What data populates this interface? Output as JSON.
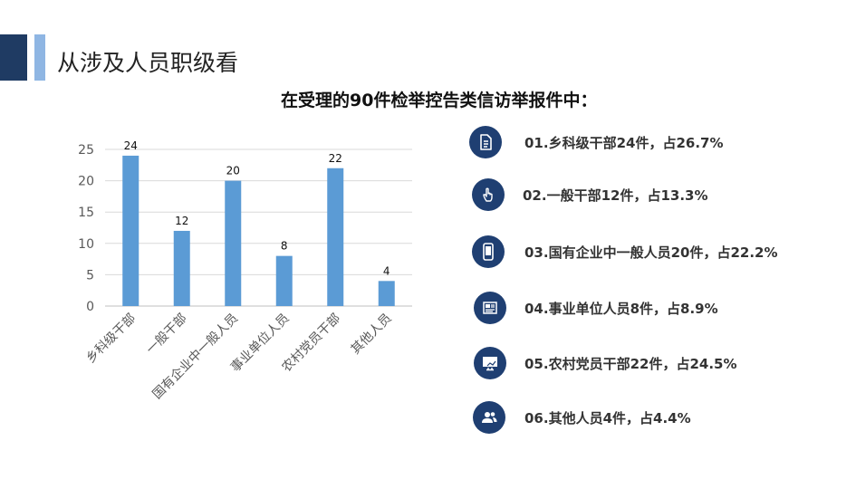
{
  "header": {
    "title": "从涉及人员职级看",
    "subtitle": "在受理的90件检举控告类信访举报件中："
  },
  "chart_data": {
    "type": "bar",
    "categories": [
      "乡科级干部",
      "一般干部",
      "国有企业中一般人员",
      "事业单位人员",
      "农村党员干部",
      "其他人员"
    ],
    "values": [
      24,
      12,
      20,
      8,
      22,
      4
    ],
    "ylim": [
      0,
      25
    ],
    "yticks": [
      0,
      5,
      10,
      15,
      20,
      25
    ],
    "grid": true,
    "bar_color": "#5b9bd5",
    "title": "",
    "xlabel": "",
    "ylabel": ""
  },
  "legend_items": [
    {
      "icon": "document-icon",
      "text": "01.乡科级干部24件，占26.7%"
    },
    {
      "icon": "hand-pointer-icon",
      "text": "02.一般干部12件，占13.3%"
    },
    {
      "icon": "smartphone-icon",
      "text": "03.国有企业中一般人员20件，占22.2%"
    },
    {
      "icon": "newspaper-icon",
      "text": "04.事业单位人员8件，占8.9%"
    },
    {
      "icon": "monitor-icon",
      "text": "05.农村党员干部22件，占24.5%"
    },
    {
      "icon": "people-icon",
      "text": "06.其他人员4件，占4.4%"
    }
  ],
  "colors": {
    "accent_dark": "#1f3b63",
    "accent_light": "#8fb6e3",
    "icon_circle": "#1f3f72"
  }
}
